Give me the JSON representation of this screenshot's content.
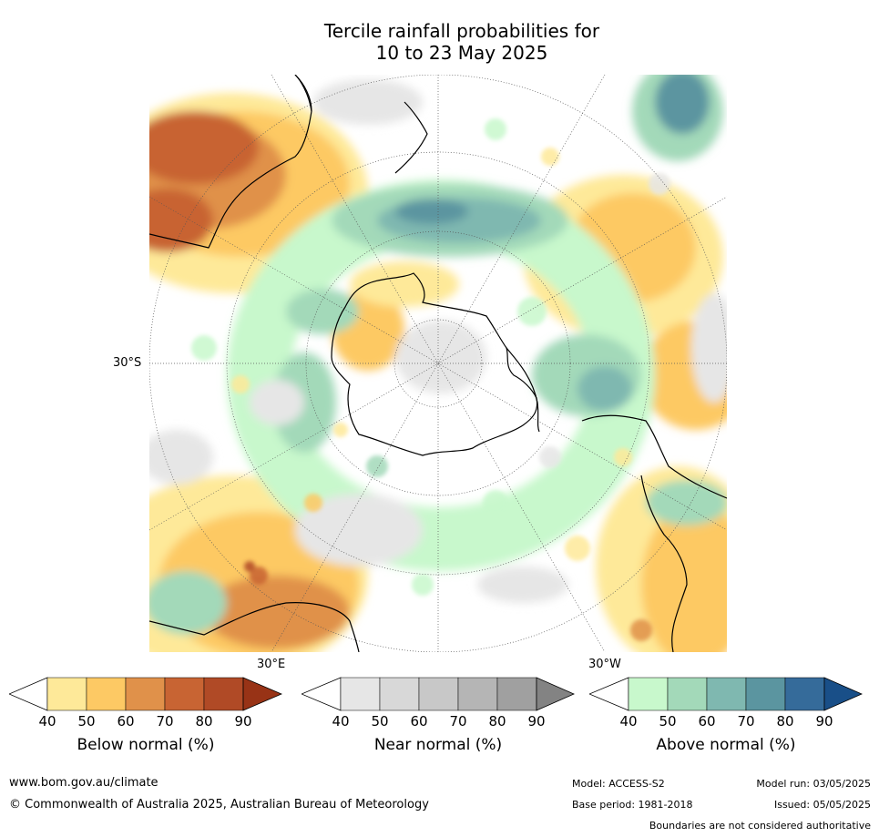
{
  "title": {
    "line1": "Tercile rainfall probabilities for",
    "line2": "10 to 23 May 2025"
  },
  "map": {
    "projection": "south-polar-stereographic",
    "graticule_labels": {
      "lat": "30°S",
      "lon_east": "30°E",
      "lon_west": "30°W"
    },
    "colors": {
      "land_outline": "#000000",
      "graticule": "#555555"
    }
  },
  "colorbars": [
    {
      "label": "Below normal (%)",
      "ticks": [
        "40",
        "50",
        "60",
        "70",
        "80",
        "90"
      ],
      "colors": [
        "#ffffff",
        "#fee999",
        "#fdc964",
        "#e0914a",
        "#c86433",
        "#b04a26",
        "#983316"
      ]
    },
    {
      "label": "Near normal (%)",
      "ticks": [
        "40",
        "50",
        "60",
        "70",
        "80",
        "90"
      ],
      "colors": [
        "#ffffff",
        "#e6e6e6",
        "#d8d8d8",
        "#c8c8c8",
        "#b5b5b5",
        "#a0a0a0",
        "#838383"
      ]
    },
    {
      "label": "Above normal (%)",
      "ticks": [
        "40",
        "50",
        "60",
        "70",
        "80",
        "90"
      ],
      "colors": [
        "#ffffff",
        "#c8f8cc",
        "#a3d9b9",
        "#7fb8b0",
        "#5b95a0",
        "#356b9a",
        "#194f88"
      ]
    }
  ],
  "footer": {
    "website": "www.bom.gov.au/climate",
    "copyright": "© Commonwealth of Australia 2025, Australian Bureau of Meteorology",
    "model": "Model: ACCESS-S2",
    "base_period": "Base period: 1981-2018",
    "model_run": "Model run: 03/05/2025",
    "issued": "Issued: 05/05/2025",
    "disclaimer": "Boundaries are not considered authoritative"
  }
}
